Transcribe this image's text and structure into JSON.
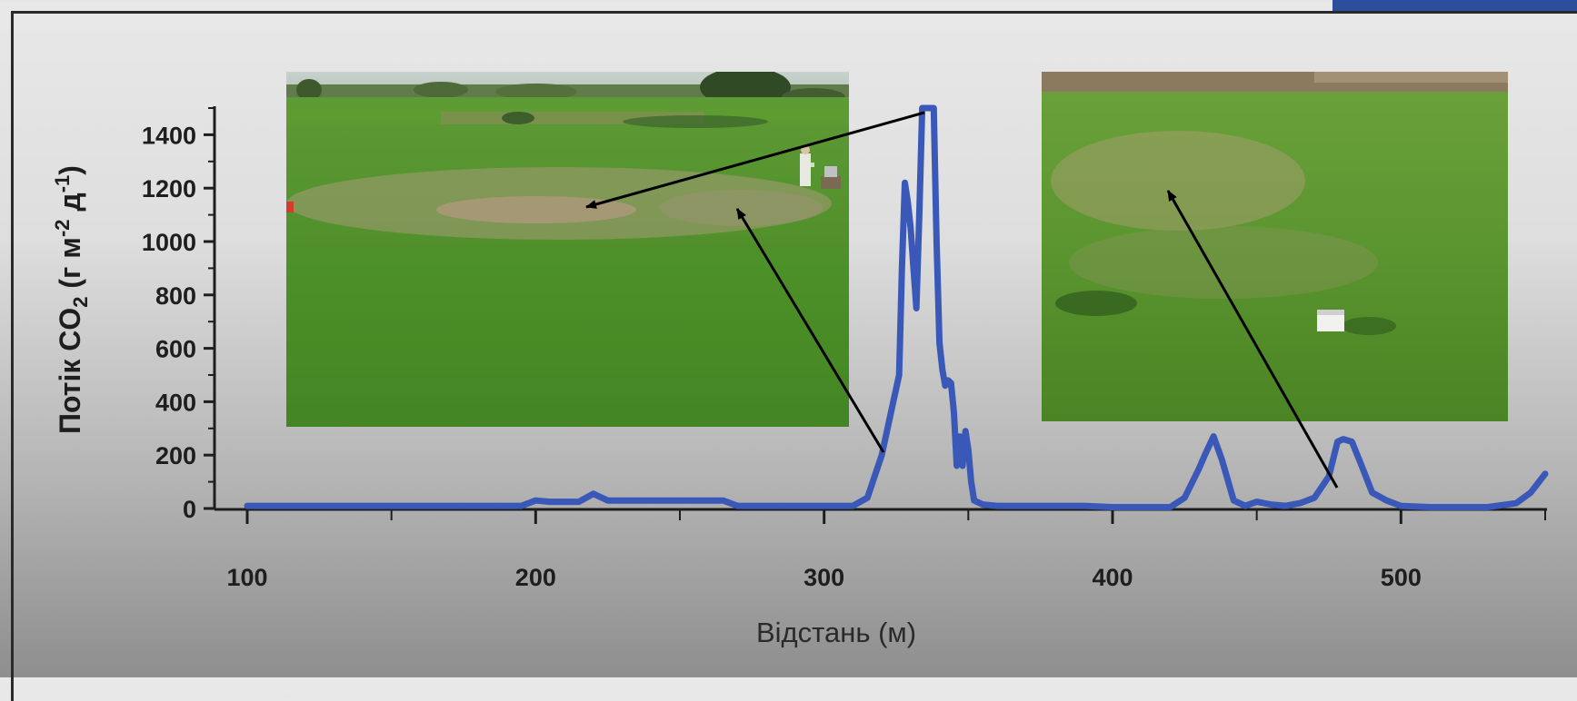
{
  "chart_data": {
    "type": "line",
    "xlabel": "Відстань (м)",
    "ylabel_parts": [
      "Потік CO",
      "2",
      " (г м",
      "-2",
      " д",
      "-1",
      ")"
    ],
    "xlim": [
      100,
      550
    ],
    "ylim": [
      0,
      1500
    ],
    "x_ticks": [
      100,
      200,
      300,
      400,
      500
    ],
    "y_ticks": [
      0,
      200,
      400,
      600,
      800,
      1000,
      1200,
      1400
    ],
    "series_color": "#3a58b8",
    "series": [
      {
        "x": [
          100,
          120,
          140,
          160,
          180,
          195,
          200,
          205,
          210,
          215,
          220,
          225,
          230,
          240,
          250,
          260,
          265,
          270,
          280,
          290,
          300,
          305,
          310,
          315,
          320,
          324,
          326,
          327,
          328,
          329,
          330,
          331,
          332,
          333,
          334,
          335,
          336,
          337,
          338,
          339,
          340,
          341,
          342,
          343,
          344,
          345,
          346,
          347,
          348,
          349,
          350,
          351,
          352,
          355,
          360,
          370,
          380,
          390,
          400,
          410,
          420,
          425,
          430,
          432,
          435,
          438,
          442,
          446,
          450,
          455,
          460,
          465,
          470,
          475,
          478,
          480,
          483,
          486,
          490,
          495,
          500,
          510,
          520,
          530,
          540,
          545,
          550
        ],
        "y": [
          10,
          10,
          10,
          10,
          10,
          10,
          30,
          25,
          25,
          25,
          55,
          30,
          30,
          30,
          30,
          30,
          30,
          10,
          10,
          10,
          10,
          10,
          10,
          40,
          200,
          400,
          500,
          900,
          1220,
          1150,
          1050,
          900,
          750,
          1100,
          1500,
          1500,
          1500,
          1500,
          1500,
          1000,
          620,
          520,
          460,
          480,
          470,
          360,
          160,
          270,
          160,
          290,
          220,
          100,
          30,
          15,
          10,
          10,
          10,
          10,
          5,
          5,
          5,
          40,
          150,
          200,
          270,
          180,
          30,
          10,
          25,
          15,
          10,
          20,
          40,
          120,
          250,
          260,
          250,
          170,
          60,
          30,
          10,
          5,
          5,
          5,
          20,
          60,
          130
        ]
      }
    ]
  }
}
